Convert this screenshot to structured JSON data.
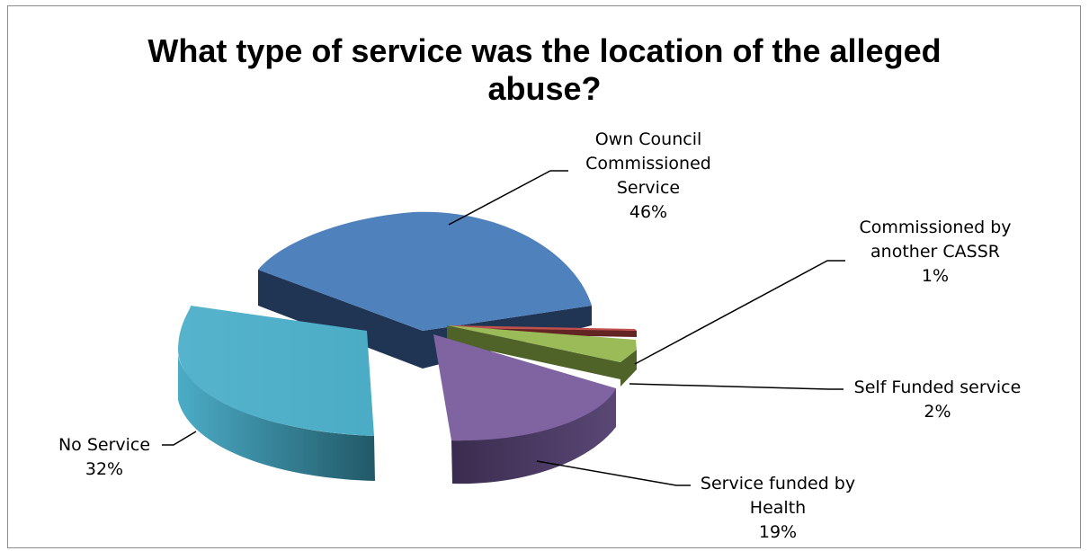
{
  "chart_data": {
    "type": "pie",
    "title_lines": [
      "What type of service was the location of the alleged",
      "abuse?"
    ],
    "slices": [
      {
        "name_lines": [
          "Own Council",
          "Commissioned",
          "Service"
        ],
        "percent_label": "46%",
        "value": 46,
        "color": "#4f81bd",
        "side_color": "#1f3553"
      },
      {
        "name_lines": [
          "Commissioned by",
          "another CASSR"
        ],
        "percent_label": "1%",
        "value": 1,
        "color": "#c0504d",
        "side_color": "#632523"
      },
      {
        "name_lines": [
          "Self Funded service"
        ],
        "percent_label": "2%",
        "value": 2,
        "color": "#9bbb59",
        "side_color": "#4f6228"
      },
      {
        "name_lines": [
          "Service funded by",
          "Health"
        ],
        "percent_label": "19%",
        "value": 19,
        "color": "#8064a2",
        "side_color": "#3f3151"
      },
      {
        "name_lines": [
          "No Service"
        ],
        "percent_label": "32%",
        "value": 32,
        "color": "#4bacc6",
        "side_color": "#2a6f82"
      }
    ],
    "style": "3d-exploded-pie",
    "legend": "none"
  }
}
